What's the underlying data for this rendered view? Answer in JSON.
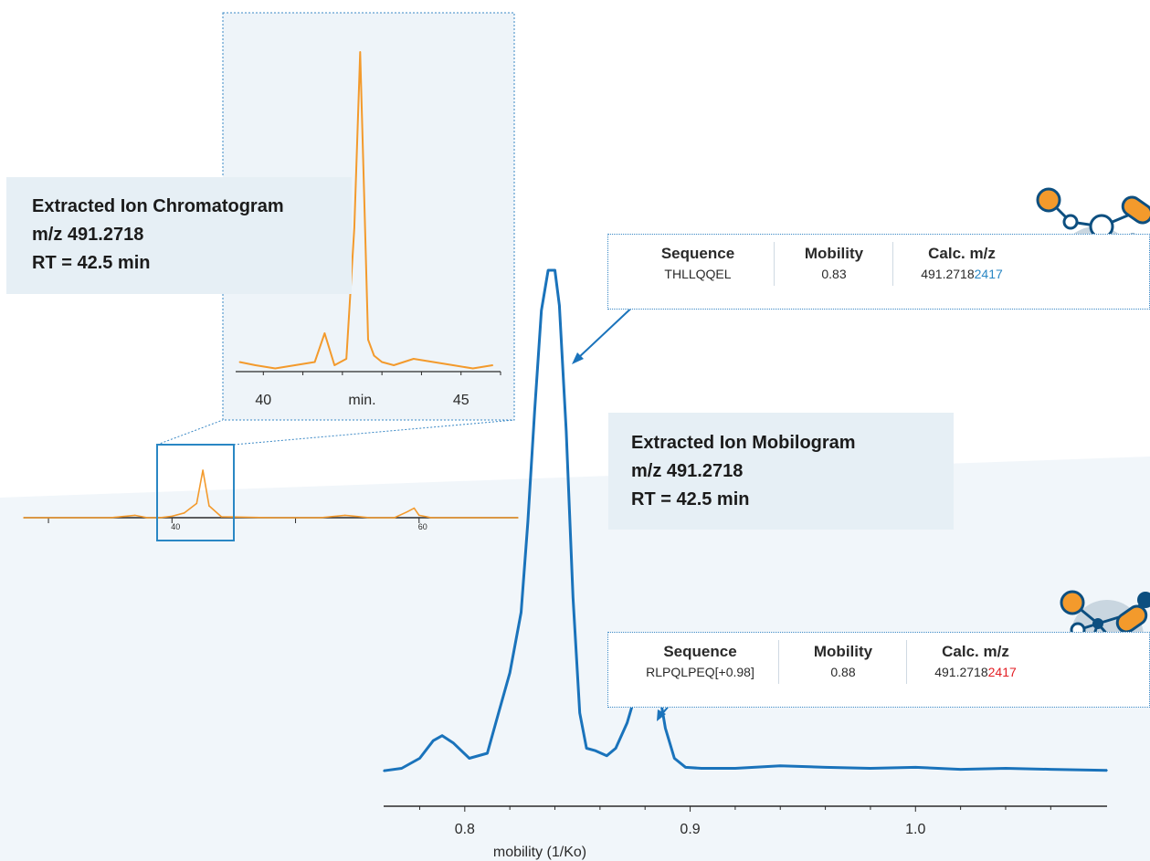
{
  "colors": {
    "chromatogram": "#f39a2c",
    "mobilogram": "#1a73bb",
    "panel_bg": "#e6eff5",
    "highlight_blue": "#2a87c4",
    "highlight_red": "#e31e24"
  },
  "eic_box": {
    "line1": "Extracted Ion Chromatogram",
    "line2": "m/z 491.2718",
    "line3": "RT = 42.5 min"
  },
  "eim_box": {
    "line1": "Extracted Ion Mobilogram",
    "line2": "m/z 491.2718",
    "line3": "RT = 42.5 min"
  },
  "table1": {
    "headers": [
      "Sequence",
      "Mobility",
      "Calc. m/z"
    ],
    "sequence": "THLLQQEL",
    "mobility": "0.83",
    "mz_prefix": "491.2718",
    "mz_suffix": "2417",
    "suffix_color": "blue",
    "molecule_icon": "molecule-network-icon"
  },
  "table2": {
    "headers": [
      "Sequence",
      "Mobility",
      "Calc. m/z"
    ],
    "sequence": "RLPQLPEQ[+0.98]",
    "mobility": "0.88",
    "mz_prefix": "491.2718",
    "mz_suffix": "2417",
    "suffix_color": "red",
    "molecule_icon": "molecule-network-icon"
  },
  "chart_data": [
    {
      "type": "line",
      "id": "chromatogram-zoom",
      "x_tick_labels": [
        "40",
        "45"
      ],
      "x_unit_label": "min.",
      "xlim": [
        39.3,
        46.0
      ],
      "series": [
        {
          "x": [
            39.4,
            39.8,
            40.3,
            40.8,
            41.3,
            41.55,
            41.8,
            42.1,
            42.3,
            42.45,
            42.55,
            42.65,
            42.8,
            43.0,
            43.3,
            43.8,
            44.3,
            44.8,
            45.3,
            45.8
          ],
          "values": [
            0.03,
            0.02,
            0.01,
            0.02,
            0.03,
            0.12,
            0.02,
            0.04,
            0.45,
            1.0,
            0.55,
            0.1,
            0.05,
            0.03,
            0.02,
            0.04,
            0.03,
            0.02,
            0.01,
            0.02
          ]
        }
      ]
    },
    {
      "type": "line",
      "id": "chromatogram-overview",
      "x_tick_labels": [
        "40",
        "60"
      ],
      "xlim": [
        28,
        68
      ],
      "series": [
        {
          "x": [
            28,
            35,
            37,
            38,
            39,
            40,
            41,
            42,
            42.5,
            43,
            44,
            48,
            52,
            54,
            56,
            58,
            59,
            59.6,
            60,
            61,
            65,
            68
          ],
          "values": [
            0,
            0,
            0.05,
            0,
            0,
            0.03,
            0.1,
            0.3,
            1.0,
            0.25,
            0.02,
            0,
            0,
            0.05,
            0,
            0,
            0.12,
            0.2,
            0.05,
            0,
            0,
            0
          ]
        }
      ],
      "highlight_range": [
        38.5,
        44.5
      ]
    },
    {
      "type": "line",
      "id": "mobilogram",
      "xlabel": "mobility (1/Ko)",
      "x_tick_labels": [
        "0.8",
        "0.9",
        "1.0"
      ],
      "x_ticks": [
        0.8,
        0.9,
        1.0
      ],
      "xlim": [
        0.764,
        1.085
      ],
      "series": [
        {
          "x": [
            0.764,
            0.772,
            0.78,
            0.786,
            0.79,
            0.795,
            0.802,
            0.81,
            0.815,
            0.82,
            0.825,
            0.828,
            0.831,
            0.834,
            0.837,
            0.84,
            0.842,
            0.845,
            0.848,
            0.851,
            0.854,
            0.858,
            0.863,
            0.867,
            0.872,
            0.876,
            0.88,
            0.883,
            0.886,
            0.889,
            0.893,
            0.898,
            0.905,
            0.92,
            0.94,
            0.96,
            0.98,
            1.0,
            1.02,
            1.04,
            1.06,
            1.085
          ],
          "values": [
            0.005,
            0.01,
            0.03,
            0.065,
            0.075,
            0.06,
            0.03,
            0.04,
            0.12,
            0.2,
            0.32,
            0.5,
            0.72,
            0.92,
            1.0,
            1.0,
            0.93,
            0.68,
            0.35,
            0.12,
            0.05,
            0.045,
            0.035,
            0.05,
            0.1,
            0.16,
            0.2,
            0.205,
            0.17,
            0.09,
            0.03,
            0.012,
            0.01,
            0.01,
            0.015,
            0.012,
            0.01,
            0.012,
            0.008,
            0.01,
            0.008,
            0.006
          ]
        }
      ]
    }
  ]
}
